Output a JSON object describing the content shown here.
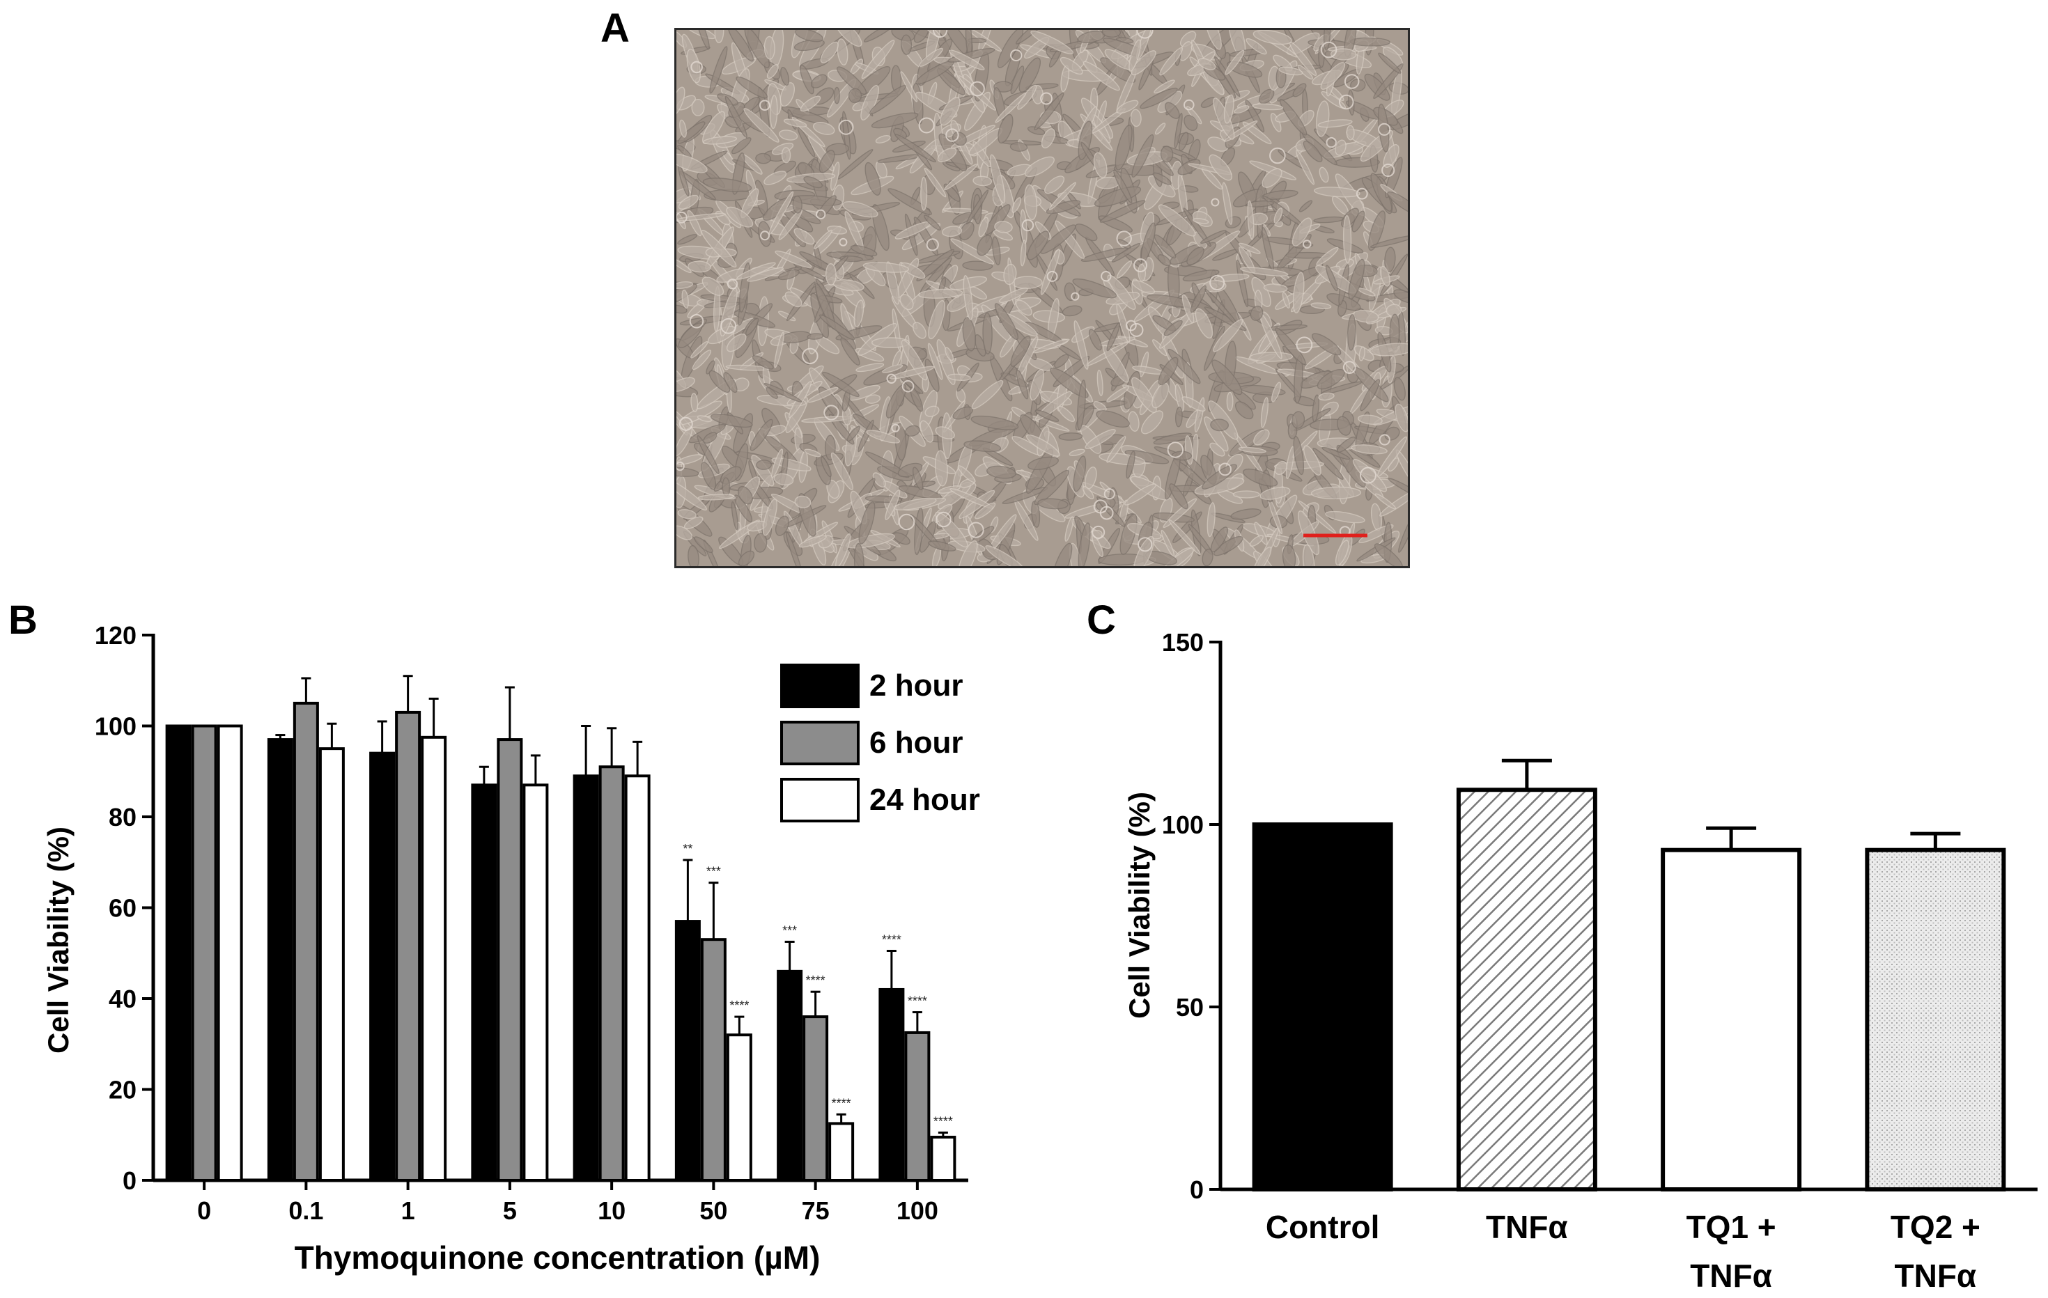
{
  "panels": {
    "a": "A",
    "b": "B",
    "c": "C"
  },
  "image_panel": {
    "background_color": "#a89c91",
    "scale_bar_color": "#e0201c"
  },
  "chart_data": [
    {
      "type": "bar",
      "panel": "B",
      "xlabel": "Thymoquinone concentration (µM)",
      "ylabel": "Cell Viability (%)",
      "ylim": [
        0,
        120
      ],
      "yticks": [
        0,
        20,
        40,
        60,
        80,
        100,
        120
      ],
      "categories": [
        "0",
        "0.1",
        "1",
        "5",
        "10",
        "50",
        "75",
        "100"
      ],
      "legend_position": "top-right",
      "series": [
        {
          "name": "2 hour",
          "color": "#000000",
          "values": [
            100,
            97,
            94,
            87,
            89,
            57,
            46,
            42
          ],
          "errors": [
            0,
            1,
            7,
            4,
            11,
            13.5,
            6.5,
            8.5
          ],
          "significance": [
            "",
            "",
            "",
            "",
            "",
            "**",
            "***",
            "****"
          ]
        },
        {
          "name": "6 hour",
          "color": "#8c8c8c",
          "values": [
            100,
            105,
            103,
            97,
            91,
            53,
            36,
            32.5
          ],
          "errors": [
            0,
            5.5,
            8,
            11.5,
            8.5,
            12.5,
            5.5,
            4.5
          ],
          "significance": [
            "",
            "",
            "",
            "",
            "",
            "***",
            "****",
            "****"
          ]
        },
        {
          "name": "24 hour",
          "color": "#ffffff",
          "values": [
            100,
            95,
            97.5,
            87,
            89,
            32,
            12.5,
            9.5
          ],
          "errors": [
            0,
            5.5,
            8.5,
            6.5,
            7.5,
            4,
            2,
            1
          ],
          "significance": [
            "",
            "",
            "",
            "",
            "",
            "****",
            "****",
            "****"
          ]
        }
      ]
    },
    {
      "type": "bar",
      "panel": "C",
      "xlabel": "",
      "ylabel": "Cell Viability (%)",
      "ylim": [
        0,
        150
      ],
      "yticks": [
        0,
        50,
        100,
        150
      ],
      "categories": [
        [
          "Control"
        ],
        [
          "TNFα"
        ],
        [
          "TQ1 +",
          "TNFα"
        ],
        [
          "TQ2 +",
          "TNFα"
        ]
      ],
      "values": [
        100,
        109.5,
        93,
        93
      ],
      "errors": [
        0,
        8,
        6,
        4.5
      ],
      "fills": [
        "solid-black",
        "diagonal-hatch",
        "white",
        "crosshatch"
      ]
    }
  ]
}
